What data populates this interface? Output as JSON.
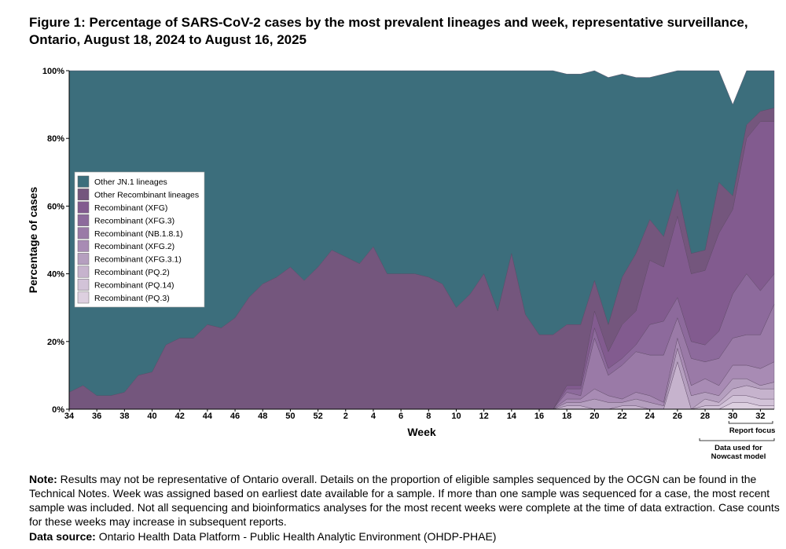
{
  "title": "Figure 1: Percentage of SARS-CoV-2 cases by the most prevalent lineages and week, representative surveillance, Ontario, August 18, 2024 to August 16, 2025",
  "note_label": "Note:",
  "note_text": " Results may not be representative of Ontario overall. Details on the proportion of eligible samples sequenced by the OCGN can be found in the Technical Notes. Week was assigned based on earliest date available for a sample. If more than one sample was sequenced for a case, the most recent sample was included. Not all sequencing and bioinformatics analyses for the most recent weeks were complete at the time of data extraction. Case counts for these weeks may increase in subsequent reports.",
  "source_label": "Data source:",
  "source_text": " Ontario Health Data Platform - Public Health Analytic Environment (OHDP-PHAE)",
  "chart_data": {
    "type": "area",
    "stacked": true,
    "xlabel": "Week",
    "ylabel": "Percentage of cases",
    "ylim": [
      0,
      100
    ],
    "yticks": [
      "0%",
      "20%",
      "40%",
      "60%",
      "80%",
      "100%"
    ],
    "tick_labels": [
      "34",
      "36",
      "38",
      "40",
      "42",
      "44",
      "46",
      "48",
      "50",
      "52",
      "2",
      "4",
      "6",
      "8",
      "10",
      "12",
      "14",
      "16",
      "18",
      "20",
      "22",
      "24",
      "26",
      "28",
      "30",
      "32"
    ],
    "weeks": [
      "34",
      "35",
      "36",
      "37",
      "38",
      "39",
      "40",
      "41",
      "42",
      "43",
      "44",
      "45",
      "46",
      "47",
      "48",
      "49",
      "50",
      "51",
      "52",
      "1",
      "2",
      "3",
      "4",
      "5",
      "6",
      "7",
      "8",
      "9",
      "10",
      "11",
      "12",
      "13",
      "14",
      "15",
      "16",
      "17",
      "18",
      "19",
      "20",
      "21",
      "22",
      "23",
      "24",
      "25",
      "26",
      "27",
      "28",
      "29",
      "30",
      "31",
      "32",
      "33"
    ],
    "series": [
      {
        "name": "Recombinant (PQ.3)",
        "color": "#ddd0e0",
        "values": [
          0,
          0,
          0,
          0,
          0,
          0,
          0,
          0,
          0,
          0,
          0,
          0,
          0,
          0,
          0,
          0,
          0,
          0,
          0,
          0,
          0,
          0,
          0,
          0,
          0,
          0,
          0,
          0,
          0,
          0,
          0,
          0,
          0,
          0,
          0,
          0,
          0,
          0,
          0,
          0,
          0,
          0,
          0,
          0,
          0,
          0,
          0,
          0,
          2,
          2,
          1,
          1
        ]
      },
      {
        "name": "Recombinant (PQ.14)",
        "color": "#d2c3d8",
        "values": [
          0,
          0,
          0,
          0,
          0,
          0,
          0,
          0,
          0,
          0,
          0,
          0,
          0,
          0,
          0,
          0,
          0,
          0,
          0,
          0,
          0,
          0,
          0,
          0,
          0,
          0,
          0,
          0,
          0,
          0,
          0,
          0,
          0,
          0,
          0,
          0,
          0,
          0,
          0,
          0,
          0,
          0,
          0,
          0,
          0,
          0,
          1,
          1,
          2,
          2,
          2,
          2
        ]
      },
      {
        "name": "Recombinant (PQ.2)",
        "color": "#c6b3cd",
        "values": [
          0,
          0,
          0,
          0,
          0,
          0,
          0,
          0,
          0,
          0,
          0,
          0,
          0,
          0,
          0,
          0,
          0,
          0,
          0,
          0,
          0,
          0,
          0,
          0,
          0,
          0,
          0,
          0,
          0,
          0,
          0,
          0,
          0,
          0,
          0,
          0,
          1,
          1,
          0,
          0,
          1,
          1,
          0,
          0,
          14,
          0,
          2,
          1,
          2,
          3,
          3,
          3
        ]
      },
      {
        "name": "Recombinant (XFG.3.1)",
        "color": "#b59fbf",
        "values": [
          0,
          0,
          0,
          0,
          0,
          0,
          0,
          0,
          0,
          0,
          0,
          0,
          0,
          0,
          0,
          0,
          0,
          0,
          0,
          0,
          0,
          0,
          0,
          0,
          0,
          0,
          0,
          0,
          0,
          0,
          0,
          0,
          0,
          0,
          0,
          0,
          1,
          1,
          3,
          2,
          1,
          2,
          2,
          1,
          4,
          4,
          2,
          2,
          3,
          2,
          1,
          2
        ]
      },
      {
        "name": "Recombinant (XFG.2)",
        "color": "#a88bb4",
        "values": [
          0,
          0,
          0,
          0,
          0,
          0,
          0,
          0,
          0,
          0,
          0,
          0,
          0,
          0,
          0,
          0,
          0,
          0,
          0,
          0,
          0,
          0,
          0,
          0,
          0,
          0,
          0,
          0,
          0,
          0,
          0,
          0,
          0,
          0,
          0,
          0,
          1,
          1,
          3,
          2,
          1,
          2,
          2,
          1,
          3,
          3,
          4,
          3,
          4,
          4,
          5,
          6
        ]
      },
      {
        "name": "Recombinant (NB.1.8.1)",
        "color": "#9a7aa7",
        "values": [
          0,
          0,
          0,
          0,
          0,
          0,
          0,
          0,
          0,
          0,
          0,
          0,
          0,
          0,
          0,
          0,
          0,
          0,
          0,
          0,
          0,
          0,
          0,
          0,
          0,
          0,
          0,
          0,
          0,
          0,
          0,
          0,
          0,
          0,
          0,
          0,
          2,
          1,
          15,
          6,
          10,
          12,
          12,
          14,
          6,
          8,
          5,
          8,
          8,
          9,
          10,
          17
        ]
      },
      {
        "name": "Recombinant (XFG.3)",
        "color": "#8d6a9c",
        "values": [
          0,
          0,
          0,
          0,
          0,
          0,
          0,
          0,
          0,
          0,
          0,
          0,
          0,
          0,
          0,
          0,
          0,
          0,
          0,
          0,
          0,
          0,
          0,
          0,
          0,
          0,
          0,
          0,
          0,
          0,
          0,
          0,
          0,
          0,
          0,
          0,
          1,
          2,
          3,
          2,
          2,
          2,
          9,
          10,
          6,
          5,
          5,
          8,
          13,
          18,
          13,
          9
        ]
      },
      {
        "name": "Recombinant (XFG)",
        "color": "#825b8f",
        "values": [
          0,
          0,
          0,
          0,
          0,
          0,
          0,
          0,
          0,
          0,
          0,
          0,
          0,
          0,
          0,
          0,
          0,
          0,
          0,
          0,
          0,
          0,
          0,
          0,
          0,
          0,
          0,
          0,
          0,
          0,
          0,
          0,
          0,
          0,
          0,
          0,
          1,
          1,
          5,
          5,
          10,
          10,
          19,
          16,
          24,
          20,
          22,
          29,
          25,
          40,
          50,
          45
        ]
      },
      {
        "name": "Other Recombinant lineages",
        "color": "#74567d",
        "values": [
          5,
          7,
          4,
          4,
          5,
          10,
          11,
          19,
          21,
          21,
          25,
          24,
          27,
          33,
          37,
          39,
          42,
          38,
          42,
          47,
          45,
          43,
          48,
          40,
          40,
          40,
          39,
          37,
          30,
          34,
          40,
          29,
          46,
          28,
          22,
          22,
          18,
          18,
          9,
          8,
          14,
          17,
          12,
          9,
          8,
          6,
          6,
          15,
          4,
          4,
          3,
          4
        ]
      },
      {
        "name": "Other JN.1 lineages",
        "color": "#3c6e7c",
        "values": [
          95,
          93,
          96,
          96,
          95,
          90,
          89,
          81,
          79,
          79,
          75,
          76,
          73,
          67,
          63,
          61,
          58,
          62,
          58,
          53,
          55,
          57,
          52,
          60,
          60,
          60,
          61,
          63,
          70,
          66,
          60,
          71,
          54,
          72,
          78,
          78,
          74,
          74,
          62,
          73,
          60,
          52,
          42,
          48,
          35,
          54,
          53,
          33,
          27,
          16,
          12,
          11
        ]
      }
    ],
    "legend_position": "upper-left",
    "annotations": [
      "Report focus",
      "Data used for",
      "Nowcast model"
    ]
  }
}
